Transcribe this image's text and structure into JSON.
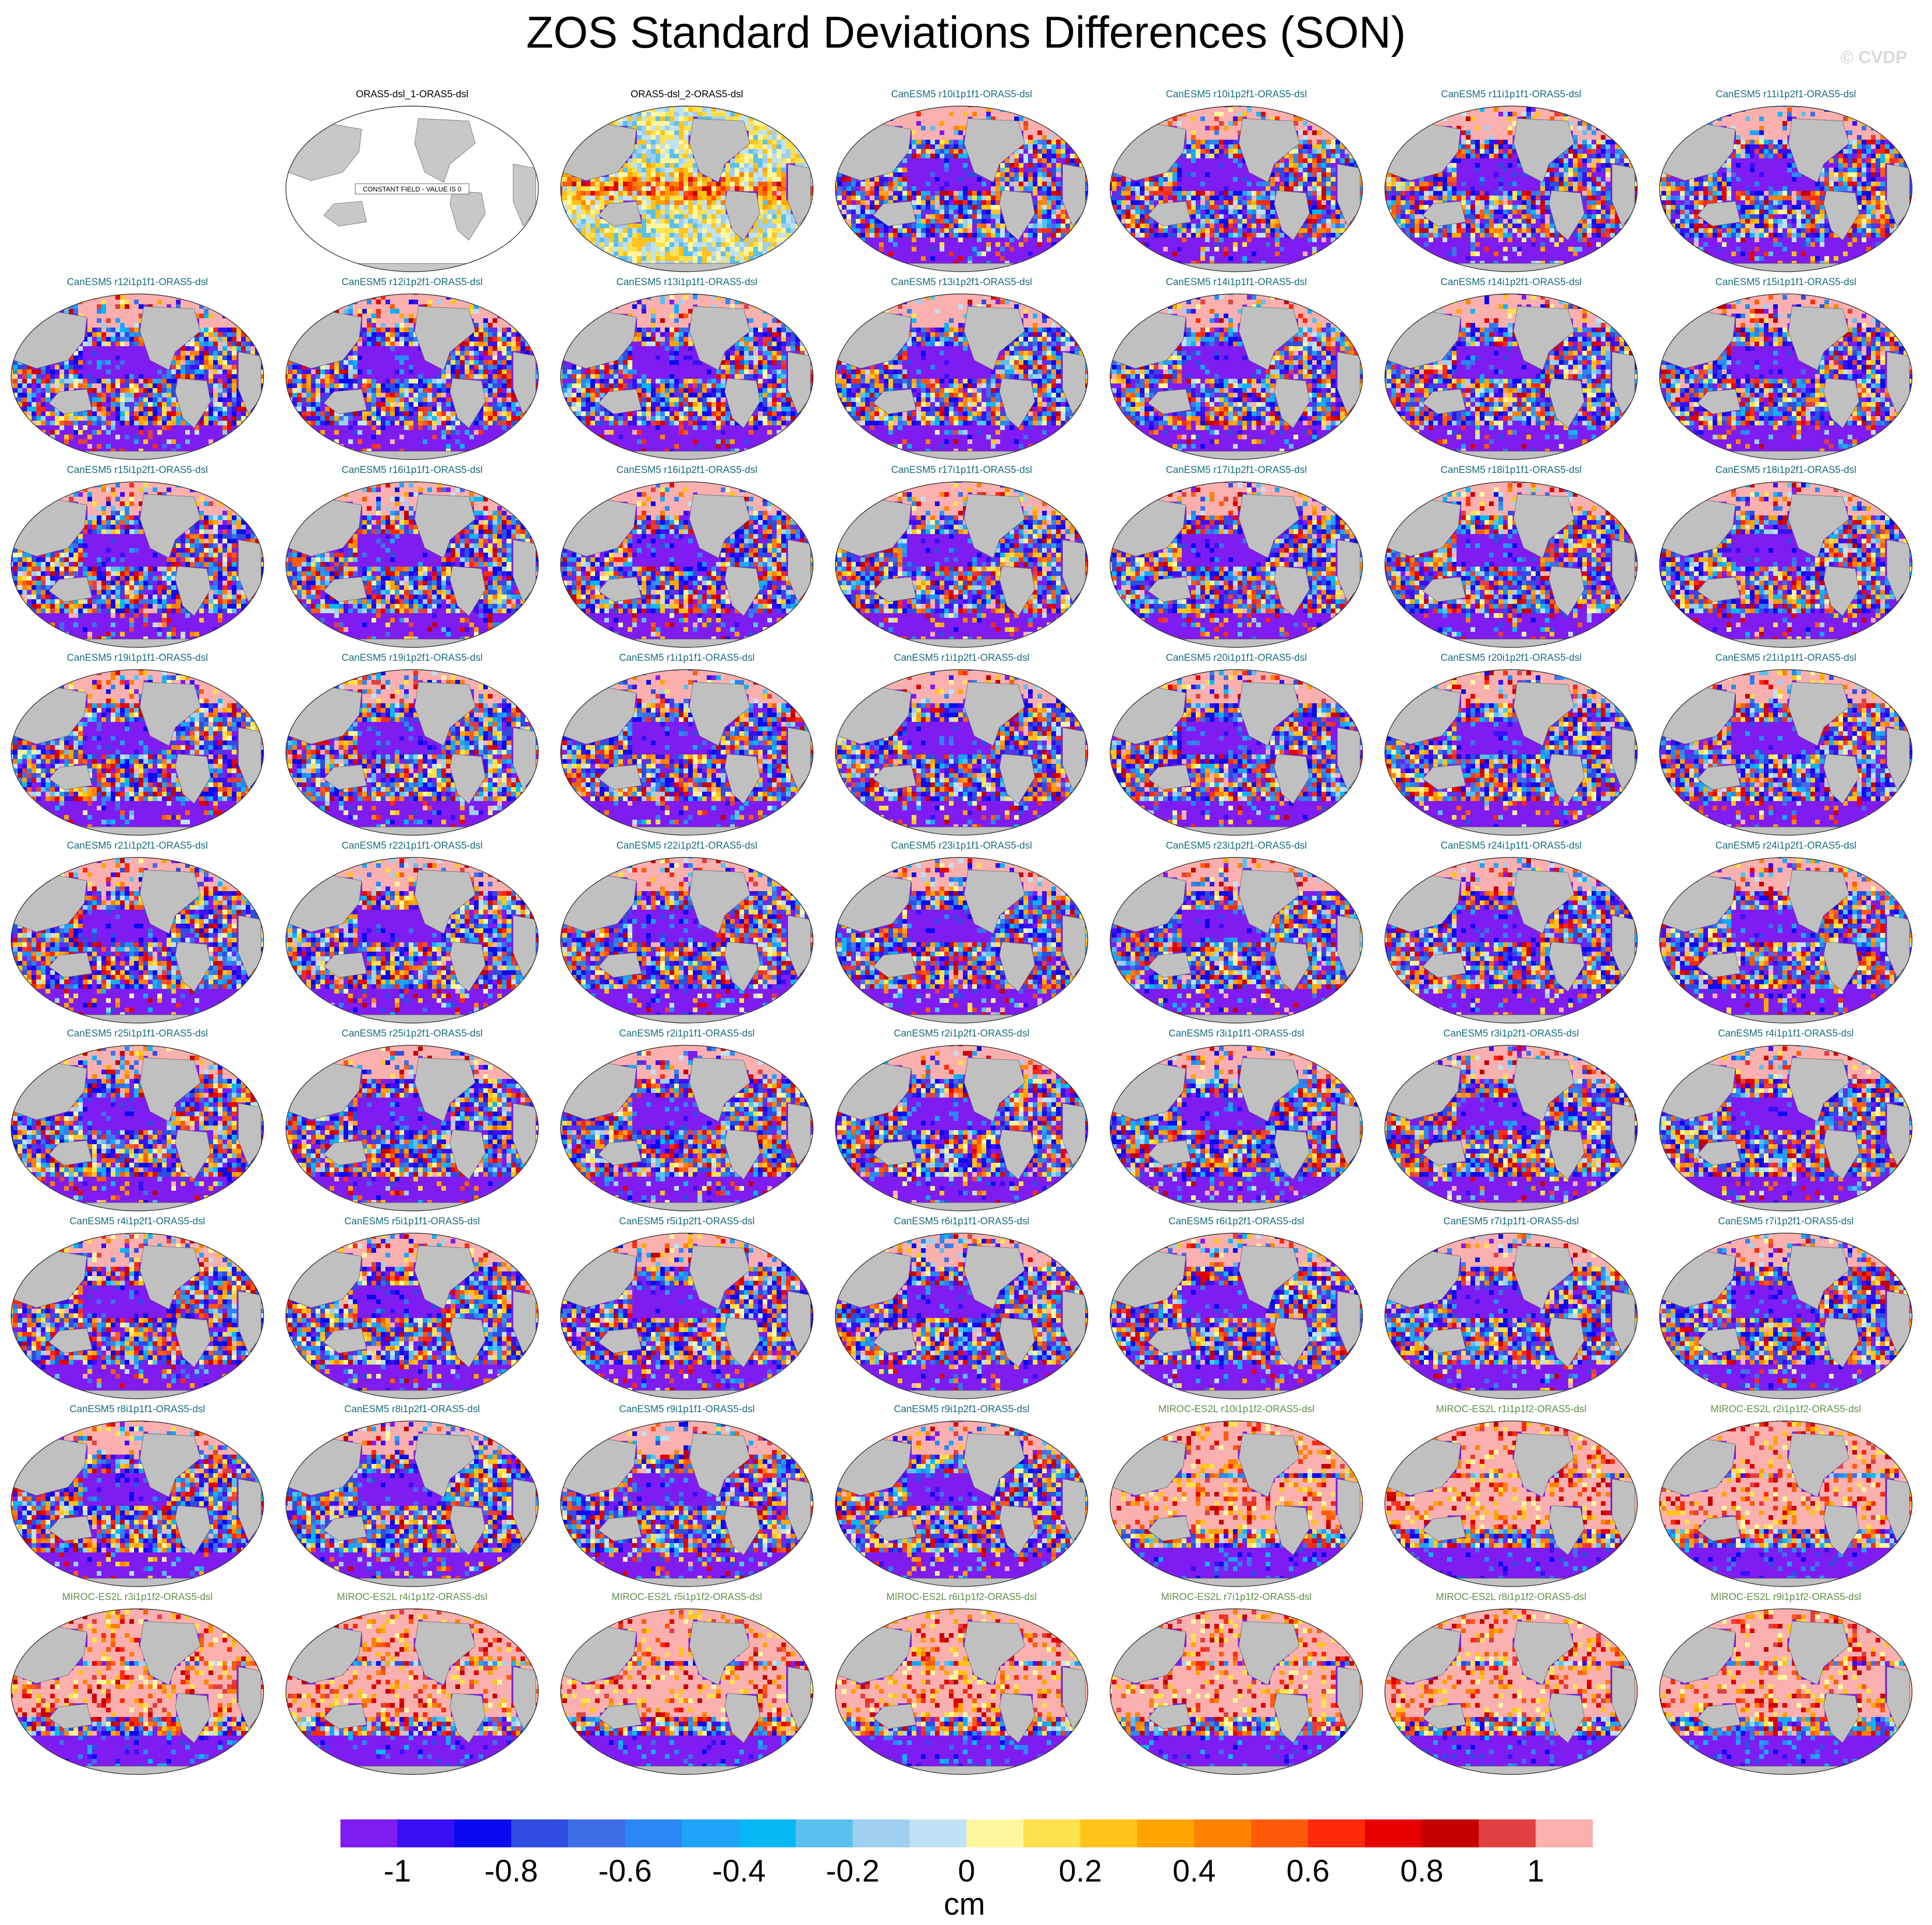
{
  "title": "ZOS Standard Deviations Differences (SON)",
  "watermark": "© CVDP",
  "colors": {
    "land": "#c0c0c0",
    "title_ref": "#000000",
    "title_canesm": "#1a6b7c",
    "title_miroc": "#5f8f4a"
  },
  "panels": [
    {
      "title": "ORAS5-dsl_1-ORAS5-dsl",
      "model": "ref",
      "constant_label": "CONSTANT FIELD - VALUE IS 0"
    },
    {
      "title": "ORAS5-dsl_2-ORAS5-dsl",
      "model": "ref2"
    },
    {
      "title": "CanESM5 r10i1p1f1-ORAS5-dsl",
      "model": "CanESM5"
    },
    {
      "title": "CanESM5 r10i1p2f1-ORAS5-dsl",
      "model": "CanESM5"
    },
    {
      "title": "CanESM5 r11i1p1f1-ORAS5-dsl",
      "model": "CanESM5"
    },
    {
      "title": "CanESM5 r11i1p2f1-ORAS5-dsl",
      "model": "CanESM5"
    },
    {
      "title": "CanESM5 r12i1p1f1-ORAS5-dsl",
      "model": "CanESM5"
    },
    {
      "title": "CanESM5 r12i1p2f1-ORAS5-dsl",
      "model": "CanESM5"
    },
    {
      "title": "CanESM5 r13i1p1f1-ORAS5-dsl",
      "model": "CanESM5"
    },
    {
      "title": "CanESM5 r13i1p2f1-ORAS5-dsl",
      "model": "CanESM5"
    },
    {
      "title": "CanESM5 r14i1p1f1-ORAS5-dsl",
      "model": "CanESM5"
    },
    {
      "title": "CanESM5 r14i1p2f1-ORAS5-dsl",
      "model": "CanESM5"
    },
    {
      "title": "CanESM5 r15i1p1f1-ORAS5-dsl",
      "model": "CanESM5"
    },
    {
      "title": "CanESM5 r15i1p2f1-ORAS5-dsl",
      "model": "CanESM5"
    },
    {
      "title": "CanESM5 r16i1p1f1-ORAS5-dsl",
      "model": "CanESM5"
    },
    {
      "title": "CanESM5 r16i1p2f1-ORAS5-dsl",
      "model": "CanESM5"
    },
    {
      "title": "CanESM5 r17i1p1f1-ORAS5-dsl",
      "model": "CanESM5"
    },
    {
      "title": "CanESM5 r17i1p2f1-ORAS5-dsl",
      "model": "CanESM5"
    },
    {
      "title": "CanESM5 r18i1p1f1-ORAS5-dsl",
      "model": "CanESM5"
    },
    {
      "title": "CanESM5 r18i1p2f1-ORAS5-dsl",
      "model": "CanESM5"
    },
    {
      "title": "CanESM5 r19i1p1f1-ORAS5-dsl",
      "model": "CanESM5"
    },
    {
      "title": "CanESM5 r19i1p2f1-ORAS5-dsl",
      "model": "CanESM5"
    },
    {
      "title": "CanESM5 r1i1p1f1-ORAS5-dsl",
      "model": "CanESM5"
    },
    {
      "title": "CanESM5 r1i1p2f1-ORAS5-dsl",
      "model": "CanESM5"
    },
    {
      "title": "CanESM5 r20i1p1f1-ORAS5-dsl",
      "model": "CanESM5"
    },
    {
      "title": "CanESM5 r20i1p2f1-ORAS5-dsl",
      "model": "CanESM5"
    },
    {
      "title": "CanESM5 r21i1p1f1-ORAS5-dsl",
      "model": "CanESM5"
    },
    {
      "title": "CanESM5 r21i1p2f1-ORAS5-dsl",
      "model": "CanESM5"
    },
    {
      "title": "CanESM5 r22i1p1f1-ORAS5-dsl",
      "model": "CanESM5"
    },
    {
      "title": "CanESM5 r22i1p2f1-ORAS5-dsl",
      "model": "CanESM5"
    },
    {
      "title": "CanESM5 r23i1p1f1-ORAS5-dsl",
      "model": "CanESM5"
    },
    {
      "title": "CanESM5 r23i1p2f1-ORAS5-dsl",
      "model": "CanESM5"
    },
    {
      "title": "CanESM5 r24i1p1f1-ORAS5-dsl",
      "model": "CanESM5"
    },
    {
      "title": "CanESM5 r24i1p2f1-ORAS5-dsl",
      "model": "CanESM5"
    },
    {
      "title": "CanESM5 r25i1p1f1-ORAS5-dsl",
      "model": "CanESM5"
    },
    {
      "title": "CanESM5 r25i1p2f1-ORAS5-dsl",
      "model": "CanESM5"
    },
    {
      "title": "CanESM5 r2i1p1f1-ORAS5-dsl",
      "model": "CanESM5"
    },
    {
      "title": "CanESM5 r2i1p2f1-ORAS5-dsl",
      "model": "CanESM5"
    },
    {
      "title": "CanESM5 r3i1p1f1-ORAS5-dsl",
      "model": "CanESM5"
    },
    {
      "title": "CanESM5 r3i1p2f1-ORAS5-dsl",
      "model": "CanESM5"
    },
    {
      "title": "CanESM5 r4i1p1f1-ORAS5-dsl",
      "model": "CanESM5"
    },
    {
      "title": "CanESM5 r4i1p2f1-ORAS5-dsl",
      "model": "CanESM5"
    },
    {
      "title": "CanESM5 r5i1p1f1-ORAS5-dsl",
      "model": "CanESM5"
    },
    {
      "title": "CanESM5 r5i1p2f1-ORAS5-dsl",
      "model": "CanESM5"
    },
    {
      "title": "CanESM5 r6i1p1f1-ORAS5-dsl",
      "model": "CanESM5"
    },
    {
      "title": "CanESM5 r6i1p2f1-ORAS5-dsl",
      "model": "CanESM5"
    },
    {
      "title": "CanESM5 r7i1p1f1-ORAS5-dsl",
      "model": "CanESM5"
    },
    {
      "title": "CanESM5 r7i1p2f1-ORAS5-dsl",
      "model": "CanESM5"
    },
    {
      "title": "CanESM5 r8i1p1f1-ORAS5-dsl",
      "model": "CanESM5"
    },
    {
      "title": "CanESM5 r8i1p2f1-ORAS5-dsl",
      "model": "CanESM5"
    },
    {
      "title": "CanESM5 r9i1p1f1-ORAS5-dsl",
      "model": "CanESM5"
    },
    {
      "title": "CanESM5 r9i1p2f1-ORAS5-dsl",
      "model": "CanESM5"
    },
    {
      "title": "MIROC-ES2L r10i1p1f2-ORAS5-dsl",
      "model": "MIROC-ES2L"
    },
    {
      "title": "MIROC-ES2L r1i1p1f2-ORAS5-dsl",
      "model": "MIROC-ES2L"
    },
    {
      "title": "MIROC-ES2L r2i1p1f2-ORAS5-dsl",
      "model": "MIROC-ES2L"
    },
    {
      "title": "MIROC-ES2L r3i1p1f2-ORAS5-dsl",
      "model": "MIROC-ES2L"
    },
    {
      "title": "MIROC-ES2L r4i1p1f2-ORAS5-dsl",
      "model": "MIROC-ES2L"
    },
    {
      "title": "MIROC-ES2L r5i1p1f2-ORAS5-dsl",
      "model": "MIROC-ES2L"
    },
    {
      "title": "MIROC-ES2L r6i1p1f2-ORAS5-dsl",
      "model": "MIROC-ES2L"
    },
    {
      "title": "MIROC-ES2L r7i1p1f2-ORAS5-dsl",
      "model": "MIROC-ES2L"
    },
    {
      "title": "MIROC-ES2L r8i1p1f2-ORAS5-dsl",
      "model": "MIROC-ES2L"
    },
    {
      "title": "MIROC-ES2L r9i1p1f2-ORAS5-dsl",
      "model": "MIROC-ES2L"
    }
  ],
  "colorbar": {
    "colors": [
      "#7f1cf2",
      "#3b0ff5",
      "#0a0af0",
      "#2f4de0",
      "#3f6fe8",
      "#2b87f5",
      "#1ea3f8",
      "#05b8f5",
      "#5ac0f0",
      "#9fd0ef",
      "#bfe2f5",
      "#fff7a0",
      "#ffe14d",
      "#ffc31a",
      "#ffa400",
      "#ff8200",
      "#ff5b0a",
      "#ff2a0a",
      "#e60000",
      "#c40000",
      "#e04040",
      "#fbb0b0"
    ],
    "tick_labels": [
      "-1",
      "-0.8",
      "-0.6",
      "-0.4",
      "-0.2",
      "0",
      "0.2",
      "0.4",
      "0.6",
      "0.8",
      "1"
    ],
    "unit": "cm"
  }
}
